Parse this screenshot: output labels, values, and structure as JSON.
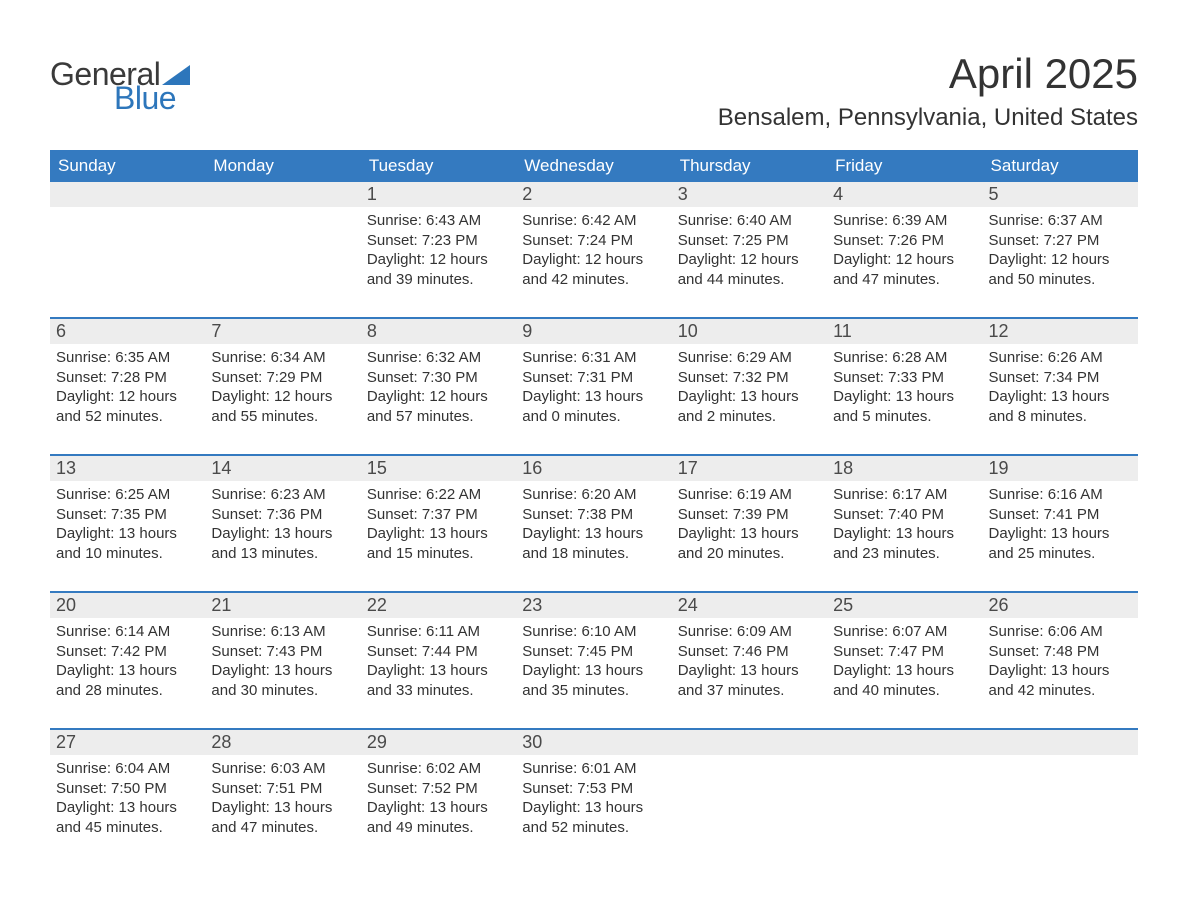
{
  "logo": {
    "text_general": "General",
    "text_blue": "Blue",
    "sail_color": "#2d76bb",
    "general_color": "#3a3a3a"
  },
  "title": "April 2025",
  "location": "Bensalem, Pennsylvania, United States",
  "weekday_labels": [
    "Sunday",
    "Monday",
    "Tuesday",
    "Wednesday",
    "Thursday",
    "Friday",
    "Saturday"
  ],
  "colors": {
    "header_bg": "#347ac0",
    "header_text": "#ffffff",
    "daynum_bg": "#ededed",
    "daynum_text": "#4a4a4a",
    "body_text": "#333333",
    "week_sep": "#347ac0",
    "page_bg": "#ffffff"
  },
  "typography": {
    "title_fontsize": 42,
    "location_fontsize": 24,
    "header_fontsize": 17,
    "daynum_fontsize": 18,
    "detail_fontsize": 15
  },
  "weeks": [
    {
      "days": [
        {
          "n": "",
          "sunrise": "",
          "sunset": "",
          "daylight": ""
        },
        {
          "n": "",
          "sunrise": "",
          "sunset": "",
          "daylight": ""
        },
        {
          "n": "1",
          "sunrise": "Sunrise: 6:43 AM",
          "sunset": "Sunset: 7:23 PM",
          "daylight": "Daylight: 12 hours and 39 minutes."
        },
        {
          "n": "2",
          "sunrise": "Sunrise: 6:42 AM",
          "sunset": "Sunset: 7:24 PM",
          "daylight": "Daylight: 12 hours and 42 minutes."
        },
        {
          "n": "3",
          "sunrise": "Sunrise: 6:40 AM",
          "sunset": "Sunset: 7:25 PM",
          "daylight": "Daylight: 12 hours and 44 minutes."
        },
        {
          "n": "4",
          "sunrise": "Sunrise: 6:39 AM",
          "sunset": "Sunset: 7:26 PM",
          "daylight": "Daylight: 12 hours and 47 minutes."
        },
        {
          "n": "5",
          "sunrise": "Sunrise: 6:37 AM",
          "sunset": "Sunset: 7:27 PM",
          "daylight": "Daylight: 12 hours and 50 minutes."
        }
      ]
    },
    {
      "days": [
        {
          "n": "6",
          "sunrise": "Sunrise: 6:35 AM",
          "sunset": "Sunset: 7:28 PM",
          "daylight": "Daylight: 12 hours and 52 minutes."
        },
        {
          "n": "7",
          "sunrise": "Sunrise: 6:34 AM",
          "sunset": "Sunset: 7:29 PM",
          "daylight": "Daylight: 12 hours and 55 minutes."
        },
        {
          "n": "8",
          "sunrise": "Sunrise: 6:32 AM",
          "sunset": "Sunset: 7:30 PM",
          "daylight": "Daylight: 12 hours and 57 minutes."
        },
        {
          "n": "9",
          "sunrise": "Sunrise: 6:31 AM",
          "sunset": "Sunset: 7:31 PM",
          "daylight": "Daylight: 13 hours and 0 minutes."
        },
        {
          "n": "10",
          "sunrise": "Sunrise: 6:29 AM",
          "sunset": "Sunset: 7:32 PM",
          "daylight": "Daylight: 13 hours and 2 minutes."
        },
        {
          "n": "11",
          "sunrise": "Sunrise: 6:28 AM",
          "sunset": "Sunset: 7:33 PM",
          "daylight": "Daylight: 13 hours and 5 minutes."
        },
        {
          "n": "12",
          "sunrise": "Sunrise: 6:26 AM",
          "sunset": "Sunset: 7:34 PM",
          "daylight": "Daylight: 13 hours and 8 minutes."
        }
      ]
    },
    {
      "days": [
        {
          "n": "13",
          "sunrise": "Sunrise: 6:25 AM",
          "sunset": "Sunset: 7:35 PM",
          "daylight": "Daylight: 13 hours and 10 minutes."
        },
        {
          "n": "14",
          "sunrise": "Sunrise: 6:23 AM",
          "sunset": "Sunset: 7:36 PM",
          "daylight": "Daylight: 13 hours and 13 minutes."
        },
        {
          "n": "15",
          "sunrise": "Sunrise: 6:22 AM",
          "sunset": "Sunset: 7:37 PM",
          "daylight": "Daylight: 13 hours and 15 minutes."
        },
        {
          "n": "16",
          "sunrise": "Sunrise: 6:20 AM",
          "sunset": "Sunset: 7:38 PM",
          "daylight": "Daylight: 13 hours and 18 minutes."
        },
        {
          "n": "17",
          "sunrise": "Sunrise: 6:19 AM",
          "sunset": "Sunset: 7:39 PM",
          "daylight": "Daylight: 13 hours and 20 minutes."
        },
        {
          "n": "18",
          "sunrise": "Sunrise: 6:17 AM",
          "sunset": "Sunset: 7:40 PM",
          "daylight": "Daylight: 13 hours and 23 minutes."
        },
        {
          "n": "19",
          "sunrise": "Sunrise: 6:16 AM",
          "sunset": "Sunset: 7:41 PM",
          "daylight": "Daylight: 13 hours and 25 minutes."
        }
      ]
    },
    {
      "days": [
        {
          "n": "20",
          "sunrise": "Sunrise: 6:14 AM",
          "sunset": "Sunset: 7:42 PM",
          "daylight": "Daylight: 13 hours and 28 minutes."
        },
        {
          "n": "21",
          "sunrise": "Sunrise: 6:13 AM",
          "sunset": "Sunset: 7:43 PM",
          "daylight": "Daylight: 13 hours and 30 minutes."
        },
        {
          "n": "22",
          "sunrise": "Sunrise: 6:11 AM",
          "sunset": "Sunset: 7:44 PM",
          "daylight": "Daylight: 13 hours and 33 minutes."
        },
        {
          "n": "23",
          "sunrise": "Sunrise: 6:10 AM",
          "sunset": "Sunset: 7:45 PM",
          "daylight": "Daylight: 13 hours and 35 minutes."
        },
        {
          "n": "24",
          "sunrise": "Sunrise: 6:09 AM",
          "sunset": "Sunset: 7:46 PM",
          "daylight": "Daylight: 13 hours and 37 minutes."
        },
        {
          "n": "25",
          "sunrise": "Sunrise: 6:07 AM",
          "sunset": "Sunset: 7:47 PM",
          "daylight": "Daylight: 13 hours and 40 minutes."
        },
        {
          "n": "26",
          "sunrise": "Sunrise: 6:06 AM",
          "sunset": "Sunset: 7:48 PM",
          "daylight": "Daylight: 13 hours and 42 minutes."
        }
      ]
    },
    {
      "days": [
        {
          "n": "27",
          "sunrise": "Sunrise: 6:04 AM",
          "sunset": "Sunset: 7:50 PM",
          "daylight": "Daylight: 13 hours and 45 minutes."
        },
        {
          "n": "28",
          "sunrise": "Sunrise: 6:03 AM",
          "sunset": "Sunset: 7:51 PM",
          "daylight": "Daylight: 13 hours and 47 minutes."
        },
        {
          "n": "29",
          "sunrise": "Sunrise: 6:02 AM",
          "sunset": "Sunset: 7:52 PM",
          "daylight": "Daylight: 13 hours and 49 minutes."
        },
        {
          "n": "30",
          "sunrise": "Sunrise: 6:01 AM",
          "sunset": "Sunset: 7:53 PM",
          "daylight": "Daylight: 13 hours and 52 minutes."
        },
        {
          "n": "",
          "sunrise": "",
          "sunset": "",
          "daylight": ""
        },
        {
          "n": "",
          "sunrise": "",
          "sunset": "",
          "daylight": ""
        },
        {
          "n": "",
          "sunrise": "",
          "sunset": "",
          "daylight": ""
        }
      ]
    }
  ]
}
